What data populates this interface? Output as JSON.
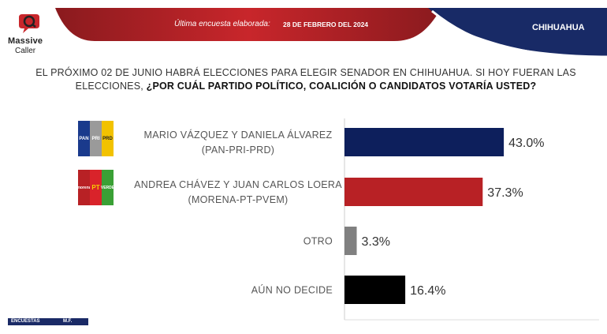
{
  "brand": {
    "name_line1": "Massive",
    "name_line2": "Caller"
  },
  "header": {
    "label": "Última encuesta elaborada:",
    "date": "28 DE FEBRERO DEL 2024",
    "region": "CHIHUAHUA"
  },
  "question": {
    "line1": "EL PRÓXIMO 02 DE JUNIO HABRÁ ELECCIONES PARA ELEGIR SENADOR EN CHIHUAHUA. SI HOY FUERAN LAS",
    "line2_plain": "ELECCIONES, ",
    "line2_bold": "¿POR CUÁL PARTIDO POLÍTICO, COALICIÓN O CANDIDATOS VOTARÍA USTED?"
  },
  "parties": {
    "pan": "PAN",
    "pri": "PRI",
    "prd": "PRD",
    "morena": "morena",
    "pt": "PT",
    "pvem": "VERDE"
  },
  "footer": {
    "left": "ENCUESTAS",
    "right": "M.F."
  },
  "chart_data": {
    "type": "bar",
    "orientation": "horizontal",
    "categories": [
      "MARIO VÁZQUEZ Y DANIELA ÁLVAREZ (PAN-PRI-PRD)",
      "ANDREA CHÁVEZ Y JUAN CARLOS LOERA (MORENA-PT-PVEM)",
      "OTRO",
      "AÚN NO DECIDE"
    ],
    "label_lines": [
      [
        "MARIO VÁZQUEZ Y DANIELA ÁLVAREZ",
        "(PAN-PRI-PRD)"
      ],
      [
        "ANDREA CHÁVEZ Y JUAN CARLOS LOERA",
        "(MORENA-PT-PVEM)"
      ],
      [
        "OTRO"
      ],
      [
        "AÚN NO DECIDE"
      ]
    ],
    "values": [
      43.0,
      37.3,
      3.3,
      16.4
    ],
    "value_labels": [
      "43.0%",
      "37.3%",
      "3.3%",
      "16.4%"
    ],
    "colors": [
      "#0d1f5c",
      "#b82125",
      "#808080",
      "#000000"
    ],
    "xlim": [
      0,
      50
    ],
    "grid": false,
    "legend": "none"
  }
}
